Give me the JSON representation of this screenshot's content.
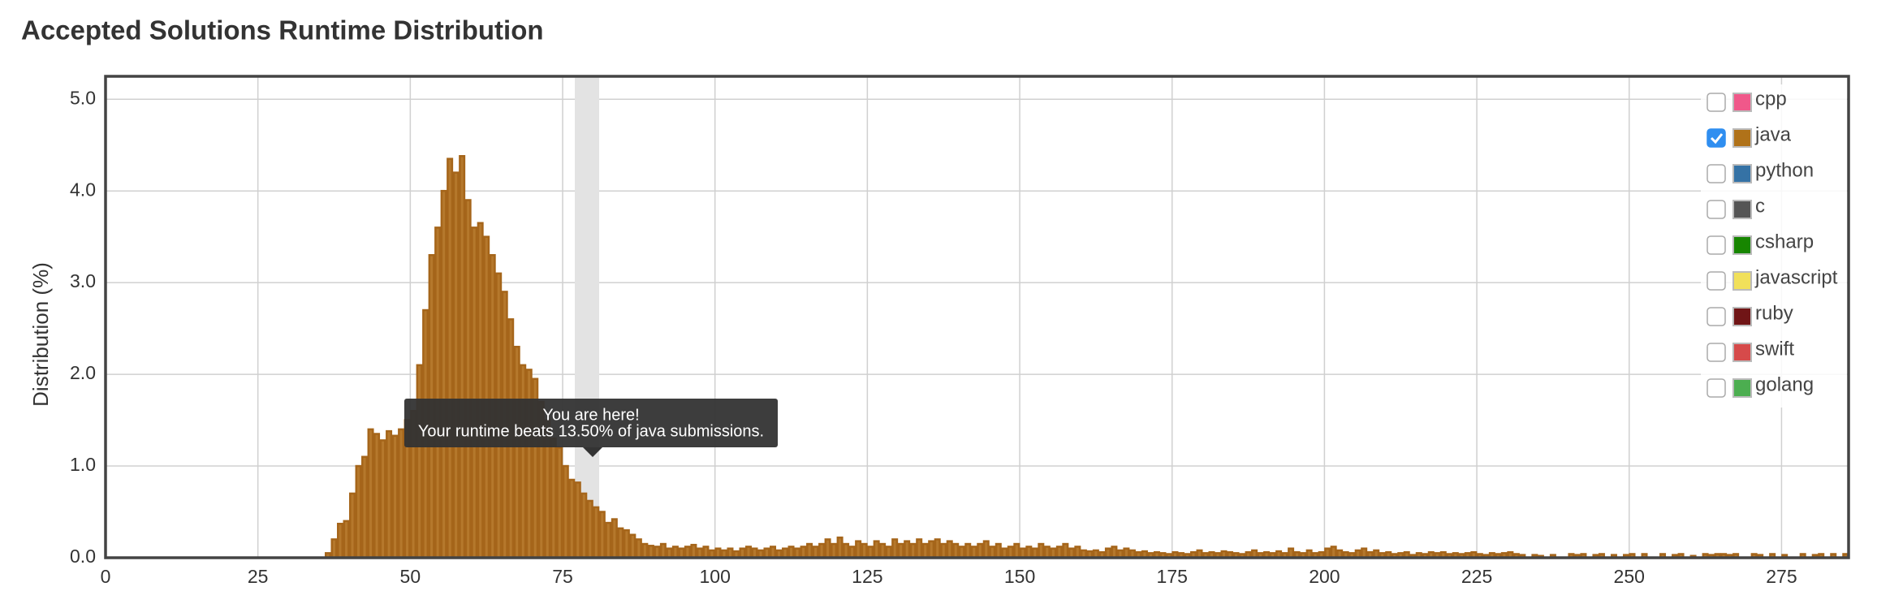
{
  "chart_data": {
    "type": "histogram",
    "title": "Accepted Solutions Runtime Distribution",
    "ylabel": "Distribution (%)",
    "annotations": [
      "You are here!",
      "Your runtime beats 13.50% of java submissions."
    ],
    "color": "#b5782c",
    "bins": [
      36,
      37,
      38,
      39,
      40,
      41,
      42,
      43,
      44,
      45,
      46,
      47,
      48,
      49,
      50,
      51,
      52,
      53,
      54,
      55,
      56,
      57,
      58,
      59,
      60,
      61,
      62,
      63,
      64,
      65,
      66,
      67,
      68,
      69,
      70,
      71,
      72,
      73,
      74,
      75,
      76,
      77,
      78,
      79,
      80,
      81,
      82,
      83,
      84,
      85,
      86,
      87,
      88,
      89,
      90,
      91,
      92,
      93,
      94,
      95,
      96,
      97,
      98,
      99,
      100,
      101,
      102,
      103,
      104,
      105,
      106,
      107,
      108,
      109,
      110,
      111,
      112,
      113,
      114,
      115,
      116,
      117,
      118,
      119,
      120,
      121,
      122,
      123,
      124,
      125,
      126,
      127,
      128,
      129,
      130,
      131,
      132,
      133,
      134,
      135,
      136,
      137,
      138,
      139,
      140,
      141,
      142,
      143,
      144,
      145,
      146,
      147,
      148,
      149,
      150,
      151,
      152,
      153,
      154,
      155,
      156,
      157,
      158,
      159,
      160,
      161,
      162,
      163,
      164,
      165,
      166,
      167,
      168,
      169,
      170,
      171,
      172,
      173,
      174,
      175,
      176,
      177,
      178,
      179,
      180,
      181,
      182,
      183,
      184,
      185,
      186,
      187,
      188,
      189,
      190,
      191,
      192,
      193,
      194,
      195,
      196,
      197,
      198,
      199,
      200,
      201,
      202,
      203,
      204,
      205,
      206,
      207,
      208,
      209,
      210,
      211,
      212,
      213,
      214,
      215,
      216,
      217,
      218,
      219,
      220,
      221,
      222,
      223,
      224,
      225,
      226,
      227,
      228,
      229,
      230,
      231,
      232,
      233,
      234,
      235,
      236,
      237,
      238,
      239,
      240,
      241,
      242,
      243,
      244,
      245,
      246,
      247,
      248,
      249,
      250,
      251,
      252,
      253,
      254,
      255,
      256,
      257,
      258,
      259,
      260,
      261,
      262,
      263,
      264,
      265,
      266,
      267,
      268,
      269,
      270,
      271,
      272,
      273,
      274,
      275,
      276,
      277,
      278,
      279,
      280,
      281,
      282,
      283,
      284,
      285,
      286
    ],
    "values": [
      0.05,
      0.2,
      0.37,
      0.4,
      0.7,
      1.0,
      1.1,
      1.4,
      1.35,
      1.28,
      1.38,
      1.33,
      1.4,
      1.5,
      1.6,
      2.1,
      2.7,
      3.3,
      3.6,
      4.0,
      4.35,
      4.2,
      4.38,
      3.9,
      3.6,
      3.65,
      3.5,
      3.3,
      3.1,
      2.9,
      2.6,
      2.3,
      2.1,
      2.05,
      1.95,
      1.7,
      1.5,
      1.3,
      1.2,
      1.0,
      0.85,
      0.82,
      0.7,
      0.62,
      0.55,
      0.5,
      0.38,
      0.42,
      0.32,
      0.3,
      0.25,
      0.2,
      0.15,
      0.13,
      0.12,
      0.15,
      0.1,
      0.12,
      0.1,
      0.12,
      0.14,
      0.1,
      0.12,
      0.08,
      0.1,
      0.08,
      0.1,
      0.07,
      0.1,
      0.12,
      0.1,
      0.08,
      0.1,
      0.12,
      0.08,
      0.1,
      0.12,
      0.1,
      0.12,
      0.15,
      0.12,
      0.15,
      0.2,
      0.15,
      0.22,
      0.15,
      0.12,
      0.18,
      0.15,
      0.12,
      0.18,
      0.15,
      0.12,
      0.2,
      0.15,
      0.18,
      0.15,
      0.2,
      0.15,
      0.18,
      0.2,
      0.15,
      0.18,
      0.15,
      0.12,
      0.15,
      0.12,
      0.15,
      0.18,
      0.12,
      0.15,
      0.1,
      0.12,
      0.15,
      0.1,
      0.12,
      0.1,
      0.15,
      0.12,
      0.1,
      0.12,
      0.15,
      0.1,
      0.12,
      0.08,
      0.07,
      0.08,
      0.06,
      0.1,
      0.12,
      0.08,
      0.1,
      0.08,
      0.06,
      0.07,
      0.05,
      0.06,
      0.05,
      0.04,
      0.06,
      0.05,
      0.04,
      0.06,
      0.08,
      0.05,
      0.06,
      0.05,
      0.07,
      0.06,
      0.05,
      0.04,
      0.06,
      0.08,
      0.05,
      0.06,
      0.05,
      0.07,
      0.05,
      0.1,
      0.06,
      0.05,
      0.08,
      0.05,
      0.06,
      0.1,
      0.12,
      0.08,
      0.06,
      0.05,
      0.08,
      0.1,
      0.06,
      0.08,
      0.05,
      0.06,
      0.04,
      0.05,
      0.06,
      0.03,
      0.05,
      0.04,
      0.06,
      0.05,
      0.06,
      0.04,
      0.05,
      0.04,
      0.05,
      0.06,
      0.04,
      0.03,
      0.05,
      0.04,
      0.05,
      0.06,
      0.04,
      0.03,
      0,
      0.03,
      0.02,
      0,
      0.03,
      0,
      0,
      0.04,
      0.03,
      0.04,
      0,
      0.03,
      0.04,
      0,
      0.03,
      0,
      0.03,
      0.04,
      0,
      0.04,
      0,
      0,
      0.04,
      0,
      0.03,
      0.04,
      0,
      0.02,
      0,
      0.04,
      0.03,
      0.04,
      0.04,
      0.03,
      0.04,
      0,
      0,
      0.04,
      0.03,
      0,
      0.04,
      0,
      0.03,
      0,
      0,
      0.04,
      0,
      0.03,
      0.04,
      0,
      0.04,
      0,
      0.04
    ],
    "xlim": [
      0,
      286
    ],
    "xticks": [
      0,
      25,
      50,
      75,
      100,
      125,
      150,
      175,
      200,
      225,
      250,
      275
    ],
    "ylim": [
      0,
      5.25
    ],
    "yticks": [
      {
        "value": 0,
        "label": "0.0"
      },
      {
        "value": 1,
        "label": "1.0"
      },
      {
        "value": 2,
        "label": "2.0"
      },
      {
        "value": 3,
        "label": "3.0"
      },
      {
        "value": 4,
        "label": "4.0"
      },
      {
        "value": 5,
        "label": "5.0"
      }
    ],
    "grid": true,
    "legend": [
      {
        "name": "cpp",
        "color": "#f0588a",
        "checked": false
      },
      {
        "name": "java",
        "color": "#b07219",
        "checked": true
      },
      {
        "name": "python",
        "color": "#3572a5",
        "checked": false
      },
      {
        "name": "c",
        "color": "#555555",
        "checked": false
      },
      {
        "name": "csharp",
        "color": "#178600",
        "checked": false
      },
      {
        "name": "javascript",
        "color": "#f1e05a",
        "checked": false
      },
      {
        "name": "ruby",
        "color": "#701516",
        "checked": false
      },
      {
        "name": "swift",
        "color": "#d64a4a",
        "checked": false
      },
      {
        "name": "golang",
        "color": "#4cae50",
        "checked": false
      }
    ]
  }
}
